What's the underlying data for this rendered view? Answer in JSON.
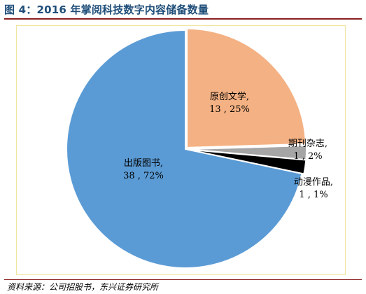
{
  "figure": {
    "title": "图 4：2016 年掌阅科技数字内容储备数量",
    "source": "资料来源：公司招股书，东兴证券研究所"
  },
  "chart_data": {
    "type": "pie",
    "title": "",
    "slices": [
      {
        "name": "原创文学",
        "value": 13,
        "percent": "25%",
        "color": "#f4b183"
      },
      {
        "name": "期刊杂志",
        "value": 1,
        "percent": "2%",
        "color": "#a5a5a5"
      },
      {
        "name": "动漫作品",
        "value": 1,
        "percent": "1%",
        "color": "#000000"
      },
      {
        "name": "出版图书",
        "value": 38,
        "percent": "72%",
        "color": "#5b9bd5"
      }
    ],
    "start": "12 o'clock",
    "direction": "clockwise",
    "legend": "none",
    "data_labels": "category name, value, percent"
  }
}
